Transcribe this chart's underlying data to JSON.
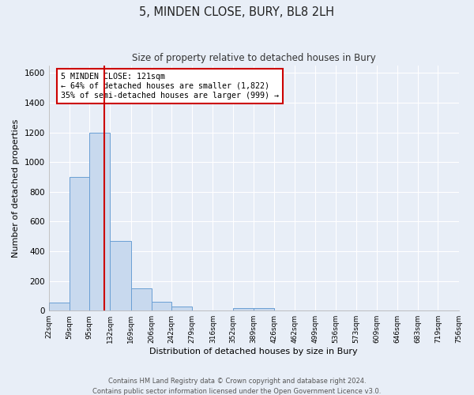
{
  "title": "5, MINDEN CLOSE, BURY, BL8 2LH",
  "subtitle": "Size of property relative to detached houses in Bury",
  "xlabel": "Distribution of detached houses by size in Bury",
  "ylabel": "Number of detached properties",
  "bar_color": "#c8d9ee",
  "bar_edge_color": "#6a9fd4",
  "background_color": "#e8eef7",
  "grid_color": "#ffffff",
  "property_line_x": 121,
  "property_line_color": "#cc0000",
  "annotation_text": "5 MINDEN CLOSE: 121sqm\n← 64% of detached houses are smaller (1,822)\n35% of semi-detached houses are larger (999) →",
  "annotation_box_color": "#ffffff",
  "annotation_box_edge": "#cc0000",
  "bins": [
    22,
    59,
    95,
    132,
    169,
    206,
    242,
    279,
    316,
    352,
    389,
    426,
    462,
    499,
    536,
    573,
    609,
    646,
    683,
    719,
    756
  ],
  "bar_heights": [
    55,
    900,
    1200,
    470,
    150,
    60,
    30,
    0,
    0,
    15,
    15,
    0,
    0,
    0,
    0,
    0,
    0,
    0,
    0,
    0
  ],
  "ylim": [
    0,
    1650
  ],
  "yticks": [
    0,
    200,
    400,
    600,
    800,
    1000,
    1200,
    1400,
    1600
  ],
  "footer_text": "Contains HM Land Registry data © Crown copyright and database right 2024.\nContains public sector information licensed under the Open Government Licence v3.0.",
  "figsize": [
    6.0,
    5.0
  ],
  "dpi": 100
}
